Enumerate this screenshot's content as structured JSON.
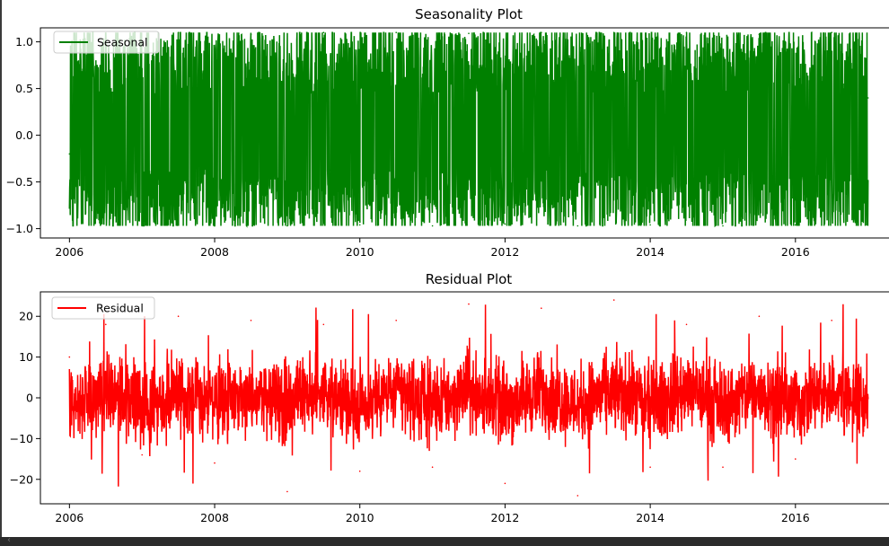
{
  "chart_data": [
    {
      "type": "line",
      "title": "Seasonality Plot",
      "xlabel": "",
      "ylabel": "",
      "x_ticks": [
        "2006",
        "2008",
        "2010",
        "2012",
        "2014",
        "2016"
      ],
      "y_ticks": [
        "1.0",
        "0.5",
        "0.0",
        "−0.5",
        "−1.0"
      ],
      "xlim": [
        2005.6,
        2017.4
      ],
      "ylim": [
        -1.1,
        1.15
      ],
      "x_range": [
        2006.0,
        2017.0
      ],
      "legend": "upper-left",
      "series": [
        {
          "name": "Seasonal",
          "color": "#008000",
          "min": -0.97,
          "max": 1.1,
          "x": [
            2006.0,
            2006.5,
            2007.0,
            2007.5,
            2008.0,
            2008.5,
            2009.0,
            2009.5,
            2010.0,
            2010.5,
            2011.0,
            2011.5,
            2012.0,
            2012.5,
            2013.0,
            2013.5,
            2014.0,
            2014.5,
            2015.0,
            2015.5,
            2016.0,
            2016.5,
            2017.0
          ],
          "values": [
            -0.2,
            0.8,
            -0.97,
            1.1,
            -0.95,
            1.08,
            -0.97,
            1.1,
            -0.96,
            1.1,
            -0.97,
            1.09,
            -0.95,
            1.1,
            -0.97,
            1.1,
            -0.96,
            1.1,
            -0.97,
            1.08,
            -0.96,
            1.1,
            0.4
          ]
        }
      ]
    },
    {
      "type": "line",
      "title": "Residual Plot",
      "xlabel": "",
      "ylabel": "",
      "x_ticks": [
        "2006",
        "2008",
        "2010",
        "2012",
        "2014",
        "2016"
      ],
      "y_ticks": [
        "20",
        "10",
        "0",
        "−10",
        "−20"
      ],
      "xlim": [
        2005.6,
        2017.4
      ],
      "ylim": [
        -26,
        26
      ],
      "x_range": [
        2006.0,
        2017.0
      ],
      "legend": "upper-left",
      "series": [
        {
          "name": "Residual",
          "color": "#ff0000",
          "min": -24,
          "max": 24,
          "x": [
            2006.0,
            2006.5,
            2007.0,
            2007.5,
            2008.0,
            2008.5,
            2009.0,
            2009.5,
            2010.0,
            2010.5,
            2011.0,
            2011.5,
            2012.0,
            2012.5,
            2013.0,
            2013.5,
            2014.0,
            2014.5,
            2015.0,
            2015.5,
            2016.0,
            2016.5,
            2017.0
          ],
          "values": [
            10,
            18,
            -14,
            20,
            -16,
            19,
            -23,
            18,
            -18,
            19,
            -17,
            23,
            -21,
            22,
            -24,
            24,
            -17,
            18,
            -17,
            20,
            -15,
            19,
            0
          ]
        }
      ]
    }
  ]
}
